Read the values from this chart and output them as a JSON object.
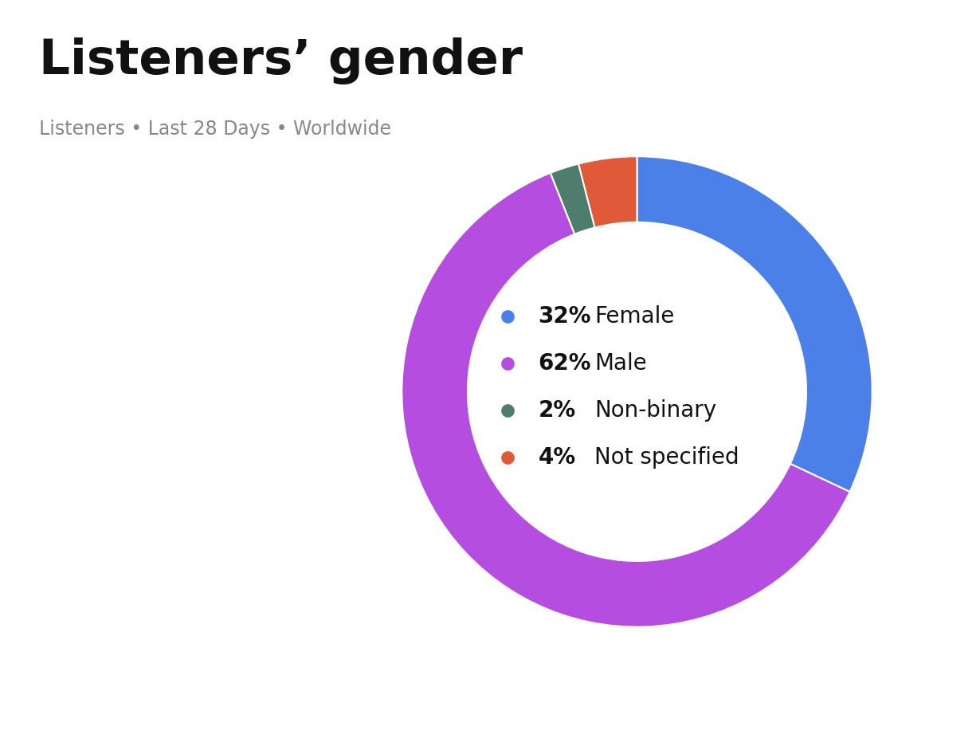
{
  "title": "Listeners’ gender",
  "subtitle": "Listeners • Last 28 Days • Worldwide",
  "slices": [
    32,
    62,
    2,
    4
  ],
  "labels": [
    "Female",
    "Male",
    "Non-binary",
    "Not specified"
  ],
  "percentages": [
    "32%",
    "62%",
    "2%",
    "4%"
  ],
  "colors": [
    "#4a80e8",
    "#b44de0",
    "#4e7d6e",
    "#e05a3a"
  ],
  "background_color": "#ffffff",
  "title_fontsize": 44,
  "subtitle_fontsize": 17,
  "legend_pct_fontsize": 20,
  "legend_label_fontsize": 20,
  "startangle": 90
}
